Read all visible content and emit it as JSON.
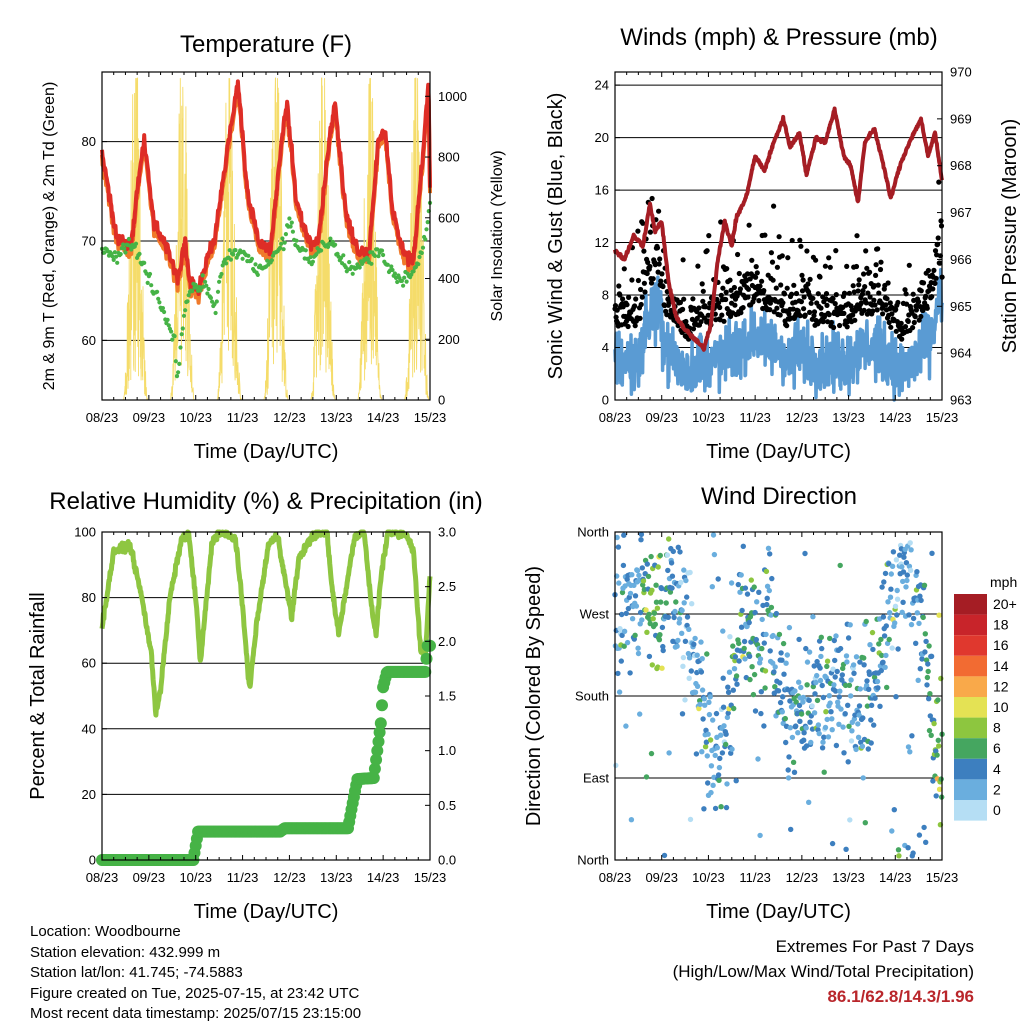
{
  "colors": {
    "temp2m": "#de2d26",
    "temp9m": "#f07a2a",
    "dew": "#46b346",
    "solar": "#f5dc6a",
    "sonic": "#5a9bd3",
    "gust": "#000000",
    "pressure": "#a51d24",
    "rh": "#8ec641",
    "rain": "#46b346"
  },
  "x_ticks": [
    "08/23",
    "09/23",
    "10/23",
    "11/23",
    "12/23",
    "13/23",
    "14/23",
    "15/23"
  ],
  "panels": {
    "temp": {
      "title": "Temperature (F)",
      "xlabel": "Time (Day/UTC)",
      "ylabel": "2m & 9m T (Red, Orange) & 2m Td (Green)",
      "ylabel2": "Solar Insolation (Yellow)",
      "yticks": [
        "60",
        "70",
        "80"
      ],
      "y2ticks": [
        "0",
        "200",
        "400",
        "600",
        "800",
        "1000"
      ]
    },
    "wind": {
      "title": "Winds (mph) & Pressure (mb)",
      "xlabel": "Time (Day/UTC)",
      "ylabel": "Sonic Wind & Gust (Blue, Black)",
      "ylabel2": "Station Pressure (Maroon)",
      "yticks": [
        "0",
        "4",
        "8",
        "12",
        "16",
        "20",
        "24"
      ],
      "y2ticks": [
        "963",
        "964",
        "965",
        "966",
        "967",
        "968",
        "969",
        "970"
      ]
    },
    "rh": {
      "title": "Relative Humidity (%) & Precipitation (in)",
      "xlabel": "Time (Day/UTC)",
      "ylabel": "Percent & Total Rainfall",
      "yticks": [
        "0",
        "20",
        "40",
        "60",
        "80",
        "100"
      ],
      "y2ticks": [
        "0.0",
        "0.5",
        "1.0",
        "1.5",
        "2.0",
        "2.5",
        "3.0"
      ]
    },
    "dir": {
      "title": "Wind Direction",
      "xlabel": "Time (Day/UTC)",
      "ylabel": "Direction (Colored By Speed)",
      "yticks": [
        "North",
        "East",
        "South",
        "West",
        "North"
      ],
      "legend_title": "mph",
      "legend_labels": [
        "20+",
        "18",
        "16",
        "14",
        "12",
        "10",
        "8",
        "6",
        "4",
        "2",
        "0"
      ],
      "legend_colors": [
        "#a51d24",
        "#c8242a",
        "#e0382e",
        "#f26b32",
        "#f9a94a",
        "#e4e254",
        "#8dc63f",
        "#45a660",
        "#3d7fbf",
        "#6aaede",
        "#b5def4"
      ]
    }
  },
  "chart_data": [
    {
      "type": "line",
      "title": "Temperature (F)",
      "xlabel": "Time (Day/UTC)",
      "x": [
        "08/23",
        "09/23",
        "10/23",
        "11/23",
        "12/23",
        "13/23",
        "14/23",
        "15/23"
      ],
      "ylim": [
        54,
        87
      ],
      "y2lim": [
        0,
        1000
      ],
      "series": [
        {
          "values": [
            79,
            80,
            66,
            86,
            83,
            84,
            79,
            84
          ]
        },
        {
          "values": [
            78,
            79,
            66,
            85,
            82,
            83,
            78,
            83
          ]
        },
        {
          "values": [
            69,
            60,
            64,
            68,
            69,
            68,
            67,
            72
          ]
        },
        {
          "values": [
            0,
            1000,
            1000,
            1000,
            1000,
            1000,
            1000,
            1000
          ]
        }
      ]
    },
    {
      "type": "line",
      "title": "Winds (mph) & Pressure (mb)",
      "xlabel": "Time (Day/UTC)",
      "x": [
        "08/23",
        "09/23",
        "10/23",
        "11/23",
        "12/23",
        "13/23",
        "14/23",
        "15/23"
      ],
      "ylim": [
        0,
        25
      ],
      "y2lim": [
        963,
        970
      ],
      "series": [
        {
          "values": [
            6,
            8,
            5,
            6,
            6,
            5,
            5,
            14
          ]
        },
        {
          "values": [
            9,
            15,
            8,
            14,
            14,
            13,
            13,
            23
          ]
        },
        {
          "values": [
            966.2,
            966.6,
            964,
            969,
            968.5,
            968.6,
            969,
            968
          ]
        }
      ]
    },
    {
      "type": "line",
      "title": "Relative Humidity (%) & Precipitation (in)",
      "xlabel": "Time (Day/UTC)",
      "x": [
        "08/23",
        "09/23",
        "10/23",
        "11/23",
        "12/23",
        "13/23",
        "14/23",
        "15/23"
      ],
      "ylim": [
        0,
        100
      ],
      "y2lim": [
        0,
        3
      ],
      "series": [
        {
          "values": [
            71,
            99,
            100,
            99,
            99,
            99,
            100,
            87
          ]
        },
        {
          "values": [
            0,
            0,
            0.26,
            0.26,
            0.29,
            0.29,
            1.72,
            1.96
          ]
        }
      ]
    },
    {
      "type": "scatter",
      "title": "Wind Direction",
      "xlabel": "Time (Day/UTC)",
      "ylabel": "Direction (Colored By Speed)",
      "x": [
        "08/23",
        "09/23",
        "10/23",
        "11/23",
        "12/23",
        "13/23",
        "14/23",
        "15/23"
      ],
      "yticks": [
        "North",
        "East",
        "South",
        "West",
        "North"
      ],
      "series": [
        {
          "values": [
            270,
            300,
            130,
            250,
            160,
            190,
            280,
            190
          ]
        }
      ]
    }
  ],
  "info": {
    "location": "Location: Woodbourne",
    "elevation": "Station elevation: 432.999 m",
    "latlon": "Station lat/lon: 41.745; -74.5883",
    "created": "Figure created on Tue, 2025-07-15, at 23:42 UTC",
    "timestamp": "Most recent data timestamp: 2025/07/15 23:15:00"
  },
  "extremes": {
    "title": "Extremes For Past 7 Days",
    "subtitle": "(High/Low/Max Wind/Total Precipitation)",
    "values": "86.1/62.8/14.3/1.96"
  }
}
